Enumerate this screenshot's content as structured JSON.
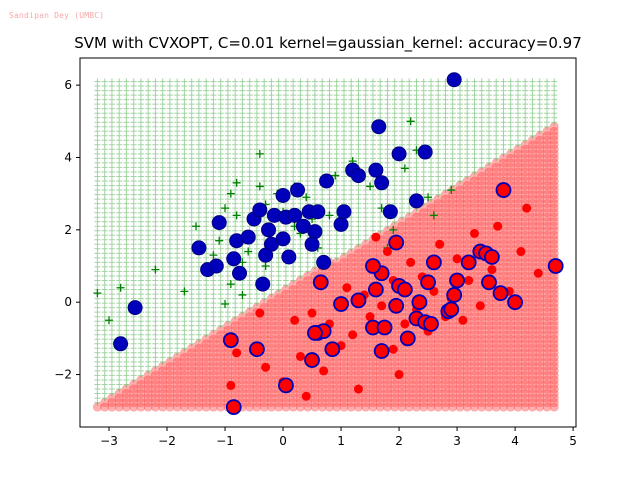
{
  "watermark": "Sandipan Dey (UMBC)",
  "chart_data": {
    "type": "scatter",
    "title": "SVM with CVXOPT, C=0.01 kernel=gaussian_kernel: accuracy=0.97",
    "xlim": [
      -3.5,
      5.05
    ],
    "ylim": [
      -3.45,
      6.75
    ],
    "xticks": [
      -3,
      -2,
      -1,
      0,
      1,
      2,
      3,
      4,
      5
    ],
    "yticks": [
      -2,
      0,
      2,
      4,
      6
    ],
    "grid": false,
    "colors": {
      "positive_region": "#2ca02c",
      "negative_region": "#ff4d4d",
      "positive_points": "#008000",
      "negative_points": "#ff0000",
      "support_vectors": "#0000bb"
    },
    "decision_boundary": {
      "slope": 0.978,
      "intercept": 0.32,
      "grid_x": [
        -3.2,
        4.7,
        0.125
      ],
      "grid_y": [
        -2.9,
        6.2,
        0.125
      ]
    },
    "series": [
      {
        "marker": "plus",
        "points": [
          [
            -3.2,
            0.25
          ],
          [
            -2.8,
            0.4
          ],
          [
            -2.6,
            -0.15
          ],
          [
            -2.2,
            0.9
          ],
          [
            -1.7,
            0.3
          ],
          [
            -1.5,
            2.1
          ],
          [
            -1.2,
            1.0
          ],
          [
            -1.2,
            1.3
          ],
          [
            -1.1,
            2.1
          ],
          [
            -1.1,
            1.7
          ],
          [
            -1.0,
            2.6
          ],
          [
            -0.9,
            3.0
          ],
          [
            -0.8,
            3.3
          ],
          [
            -0.8,
            2.4
          ],
          [
            -0.7,
            1.1
          ],
          [
            -0.6,
            1.4
          ],
          [
            -0.5,
            2.2
          ],
          [
            -0.4,
            4.1
          ],
          [
            -0.4,
            3.2
          ],
          [
            -0.3,
            2.7
          ],
          [
            -0.3,
            1.0
          ],
          [
            -0.2,
            1.9
          ],
          [
            -0.1,
            1.6
          ],
          [
            -0.1,
            3.0
          ],
          [
            0.0,
            2.5
          ],
          [
            0.1,
            1.3
          ],
          [
            0.2,
            2.1
          ],
          [
            0.2,
            3.2
          ],
          [
            0.3,
            1.9
          ],
          [
            0.4,
            2.9
          ],
          [
            0.5,
            2.3
          ],
          [
            0.6,
            1.5
          ],
          [
            0.7,
            1.0
          ],
          [
            0.8,
            2.4
          ],
          [
            0.9,
            3.5
          ],
          [
            1.0,
            2.2
          ],
          [
            1.2,
            3.9
          ],
          [
            1.5,
            3.2
          ],
          [
            1.7,
            2.6
          ],
          [
            1.9,
            2.0
          ],
          [
            2.1,
            3.7
          ],
          [
            2.3,
            4.2
          ],
          [
            2.5,
            2.9
          ],
          [
            2.6,
            2.4
          ],
          [
            -3.0,
            -0.5
          ],
          [
            -1.0,
            -0.05
          ],
          [
            -0.9,
            0.5
          ],
          [
            2.2,
            5.0
          ],
          [
            2.9,
            3.1
          ],
          [
            1.8,
            1.5
          ],
          [
            -0.7,
            0.2
          ]
        ]
      },
      {
        "marker": "dot",
        "points": [
          [
            -0.9,
            -2.3
          ],
          [
            -0.8,
            -1.4
          ],
          [
            -0.4,
            -0.3
          ],
          [
            -0.3,
            -1.8
          ],
          [
            0.0,
            -2.2
          ],
          [
            0.2,
            -0.5
          ],
          [
            0.3,
            -1.5
          ],
          [
            0.5,
            -0.3
          ],
          [
            0.6,
            -0.8
          ],
          [
            0.7,
            -1.9
          ],
          [
            0.8,
            -0.6
          ],
          [
            1.0,
            -1.2
          ],
          [
            1.1,
            0.4
          ],
          [
            1.2,
            -0.9
          ],
          [
            1.3,
            -2.4
          ],
          [
            1.4,
            0.2
          ],
          [
            1.5,
            -0.4
          ],
          [
            1.6,
            0.9
          ],
          [
            1.7,
            -0.1
          ],
          [
            1.8,
            1.4
          ],
          [
            1.9,
            -1.3
          ],
          [
            2.0,
            0.5
          ],
          [
            2.1,
            -0.6
          ],
          [
            2.2,
            1.1
          ],
          [
            2.3,
            -0.2
          ],
          [
            2.4,
            0.7
          ],
          [
            2.5,
            -0.8
          ],
          [
            2.6,
            0.3
          ],
          [
            2.7,
            1.6
          ],
          [
            2.8,
            -0.4
          ],
          [
            2.9,
            0.1
          ],
          [
            3.0,
            1.2
          ],
          [
            3.1,
            -0.5
          ],
          [
            3.2,
            0.6
          ],
          [
            3.3,
            1.9
          ],
          [
            3.4,
            -0.1
          ],
          [
            3.6,
            0.9
          ],
          [
            3.7,
            2.1
          ],
          [
            3.9,
            0.3
          ],
          [
            4.1,
            1.4
          ],
          [
            4.2,
            2.6
          ],
          [
            4.4,
            0.8
          ],
          [
            2.0,
            -2.0
          ],
          [
            1.6,
            1.8
          ],
          [
            0.4,
            -2.6
          ],
          [
            1.9,
            0.6
          ]
        ]
      },
      {
        "marker": "support-vector-negative",
        "points": [
          [
            -0.85,
            -2.9
          ],
          [
            -0.9,
            -1.05
          ],
          [
            -0.45,
            -1.3
          ],
          [
            0.05,
            -2.3
          ],
          [
            0.5,
            -1.6
          ],
          [
            0.6,
            -0.85
          ],
          [
            0.7,
            -0.8
          ],
          [
            0.85,
            -1.3
          ],
          [
            1.0,
            -0.05
          ],
          [
            1.3,
            0.05
          ],
          [
            1.55,
            -0.7
          ],
          [
            1.7,
            -1.35
          ],
          [
            1.75,
            -0.7
          ],
          [
            1.6,
            0.35
          ],
          [
            1.7,
            0.8
          ],
          [
            1.95,
            -0.1
          ],
          [
            2.0,
            0.45
          ],
          [
            2.15,
            -1.0
          ],
          [
            2.3,
            -0.45
          ],
          [
            2.45,
            -0.55
          ],
          [
            2.55,
            -0.6
          ],
          [
            2.1,
            0.35
          ],
          [
            2.5,
            0.55
          ],
          [
            2.6,
            1.1
          ],
          [
            2.85,
            -0.25
          ],
          [
            2.95,
            0.2
          ],
          [
            3.0,
            0.6
          ],
          [
            3.2,
            1.1
          ],
          [
            3.4,
            1.4
          ],
          [
            3.5,
            1.35
          ],
          [
            3.55,
            0.55
          ],
          [
            3.6,
            1.25
          ],
          [
            3.75,
            0.25
          ],
          [
            3.8,
            3.1
          ],
          [
            4.0,
            0.0
          ],
          [
            4.7,
            1.0
          ],
          [
            2.9,
            -0.2
          ],
          [
            1.95,
            1.65
          ],
          [
            1.55,
            1.0
          ],
          [
            2.35,
            0.0
          ],
          [
            0.65,
            0.55
          ],
          [
            0.55,
            -0.85
          ]
        ]
      },
      {
        "marker": "support-vector-positive",
        "points": [
          [
            -2.8,
            -1.15
          ],
          [
            -2.55,
            -0.15
          ],
          [
            -1.45,
            1.5
          ],
          [
            -1.3,
            0.9
          ],
          [
            -1.1,
            2.2
          ],
          [
            -1.15,
            1.0
          ],
          [
            -0.85,
            1.2
          ],
          [
            -0.8,
            1.7
          ],
          [
            -0.75,
            0.8
          ],
          [
            -0.6,
            1.8
          ],
          [
            -0.5,
            2.3
          ],
          [
            -0.4,
            2.55
          ],
          [
            -0.35,
            0.5
          ],
          [
            -0.2,
            1.6
          ],
          [
            -0.15,
            2.4
          ],
          [
            -0.25,
            2.0
          ],
          [
            -0.3,
            1.3
          ],
          [
            0.0,
            2.95
          ],
          [
            0.05,
            2.35
          ],
          [
            0.0,
            1.75
          ],
          [
            0.1,
            1.25
          ],
          [
            0.2,
            2.4
          ],
          [
            0.25,
            3.1
          ],
          [
            0.35,
            2.1
          ],
          [
            0.45,
            2.5
          ],
          [
            0.55,
            1.95
          ],
          [
            0.6,
            2.5
          ],
          [
            0.7,
            1.1
          ],
          [
            0.75,
            3.35
          ],
          [
            0.5,
            1.6
          ],
          [
            1.0,
            2.15
          ],
          [
            1.05,
            2.5
          ],
          [
            1.2,
            3.65
          ],
          [
            1.3,
            3.5
          ],
          [
            1.6,
            3.65
          ],
          [
            1.7,
            3.3
          ],
          [
            1.65,
            4.85
          ],
          [
            1.85,
            2.5
          ],
          [
            2.0,
            4.1
          ],
          [
            2.3,
            2.8
          ],
          [
            2.45,
            4.15
          ],
          [
            2.95,
            6.15
          ]
        ]
      }
    ]
  }
}
